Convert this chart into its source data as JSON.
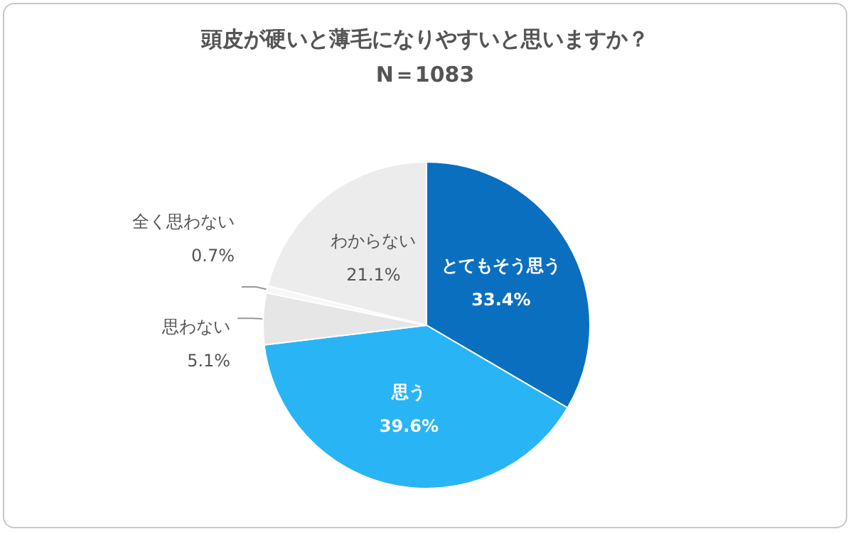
{
  "chart_data": {
    "type": "pie",
    "title": "頭皮が硬いと薄毛になりやすいと思いますか？",
    "subtitle": "N＝1083",
    "categories": [
      "とてもそう思う",
      "思う",
      "思わない",
      "全く思わない",
      "わからない"
    ],
    "values": [
      33.4,
      39.6,
      5.1,
      0.7,
      21.1
    ],
    "colors": [
      "#0b6fc0",
      "#29b5f5",
      "#e6e6e6",
      "#f7f7f7",
      "#ececec"
    ],
    "value_labels": [
      "33.4%",
      "39.6%",
      "5.1%",
      "0.7%",
      "21.1%"
    ],
    "legend": false
  }
}
